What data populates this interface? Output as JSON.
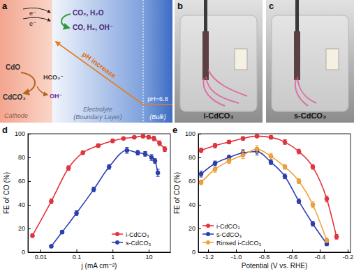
{
  "diagram": {
    "panel_label": "a",
    "electron": [
      "e⁻",
      "e⁻"
    ],
    "products_1": "CO₂, H₂O",
    "products_2": "CO, H₂, OH⁻",
    "ph_label": "pH increase",
    "bulk_ph": "pH=6.8",
    "oxide": "CdO",
    "bicarbonate": "HCO₃⁻",
    "carbonate": "CdCO₃",
    "hydroxide": "OH⁻",
    "regions": [
      "Cathode",
      "Electrolyte",
      "(Boundary Layer)",
      "(Bulk)"
    ]
  },
  "photos": [
    {
      "panel_label": "b",
      "caption": "i-CdCO₃"
    },
    {
      "panel_label": "c",
      "caption": "s-CdCO₃"
    }
  ],
  "chart_data": [
    {
      "type": "line",
      "panel_label": "d",
      "x_label": "j (mA cm⁻²)",
      "y_label": "FE of CO (%)",
      "log": "x",
      "xlim": [
        0.0045,
        40
      ],
      "xticks": [
        0.01,
        0.1,
        1,
        10
      ],
      "ylim": [
        0,
        100
      ],
      "yticks": [
        0,
        20,
        40,
        60,
        80,
        100
      ],
      "grid": false,
      "legend": "lower right",
      "marker": "circle",
      "line_style": "solid",
      "series": [
        {
          "name": "i-CdCO₃",
          "color": "#e8323c",
          "x": [
            0.006,
            0.02,
            0.06,
            0.15,
            0.4,
            1,
            2,
            4,
            7,
            10,
            14,
            20,
            28
          ],
          "values": [
            14,
            43,
            71,
            84,
            90,
            94,
            96,
            97,
            98,
            97,
            96,
            92,
            87
          ],
          "errors": [
            1.5,
            2,
            2,
            1.5,
            1.5,
            1.5,
            1,
            1,
            1.5,
            1.5,
            2,
            2,
            2
          ]
        },
        {
          "name": "s-CdCO₃",
          "color": "#2b3fb3",
          "x": [
            0.02,
            0.04,
            0.1,
            0.3,
            0.8,
            2.5,
            5,
            8,
            12,
            15,
            18
          ],
          "values": [
            5,
            17,
            33,
            53,
            72,
            86,
            84,
            83,
            80,
            77,
            67
          ],
          "errors": [
            1,
            1.5,
            2,
            2,
            2,
            2.5,
            2,
            2,
            2.5,
            2,
            3
          ]
        }
      ]
    },
    {
      "type": "line",
      "panel_label": "e",
      "x_label": "Potential (V vs. RHE)",
      "y_label": "FE of CO (%)",
      "xlim": [
        -1.27,
        -0.18
      ],
      "xticks": [
        -1.2,
        {
          "value": -1,
          "label": "-1.0"
        },
        -0.8,
        -0.6,
        -0.4,
        -0.2
      ],
      "ylim": [
        0,
        100
      ],
      "yticks": [
        0,
        20,
        40,
        60,
        80,
        100
      ],
      "grid": false,
      "legend": "lower left",
      "marker": "circle",
      "line_style": "solid",
      "series": [
        {
          "name": "i-CdCO₃",
          "color": "#e8323c",
          "x": [
            -1.25,
            -1.15,
            -1.05,
            -0.95,
            -0.85,
            -0.75,
            -0.65,
            -0.55,
            -0.45,
            -0.35,
            -0.28
          ],
          "values": [
            86,
            90,
            93,
            96,
            98,
            97,
            93,
            85,
            72,
            45,
            13
          ],
          "errors": [
            2,
            2,
            1.5,
            1.5,
            1,
            1.5,
            2,
            2,
            2,
            2.5,
            2
          ]
        },
        {
          "name": "s-CdCO₃",
          "color": "#2b3fb3",
          "x": [
            -1.25,
            -1.15,
            -1.05,
            -0.95,
            -0.85,
            -0.75,
            -0.65,
            -0.55,
            -0.45,
            -0.35
          ],
          "values": [
            66,
            75,
            80,
            84,
            85,
            76,
            64,
            43,
            24,
            7
          ],
          "errors": [
            2.5,
            2,
            2,
            2.5,
            3,
            2,
            2,
            2,
            2,
            1.5
          ]
        },
        {
          "name": "Rinsed i-CdCO₃",
          "color": "#f2a23a",
          "x": [
            -1.25,
            -1.15,
            -1.05,
            -0.95,
            -0.85,
            -0.75,
            -0.65,
            -0.55,
            -0.45,
            -0.35
          ],
          "values": [
            59,
            70,
            77,
            82,
            87,
            81,
            72,
            60,
            40,
            10
          ],
          "errors": [
            2,
            2.5,
            2,
            3,
            3,
            2.5,
            2,
            2,
            2.5,
            2
          ]
        }
      ]
    }
  ]
}
